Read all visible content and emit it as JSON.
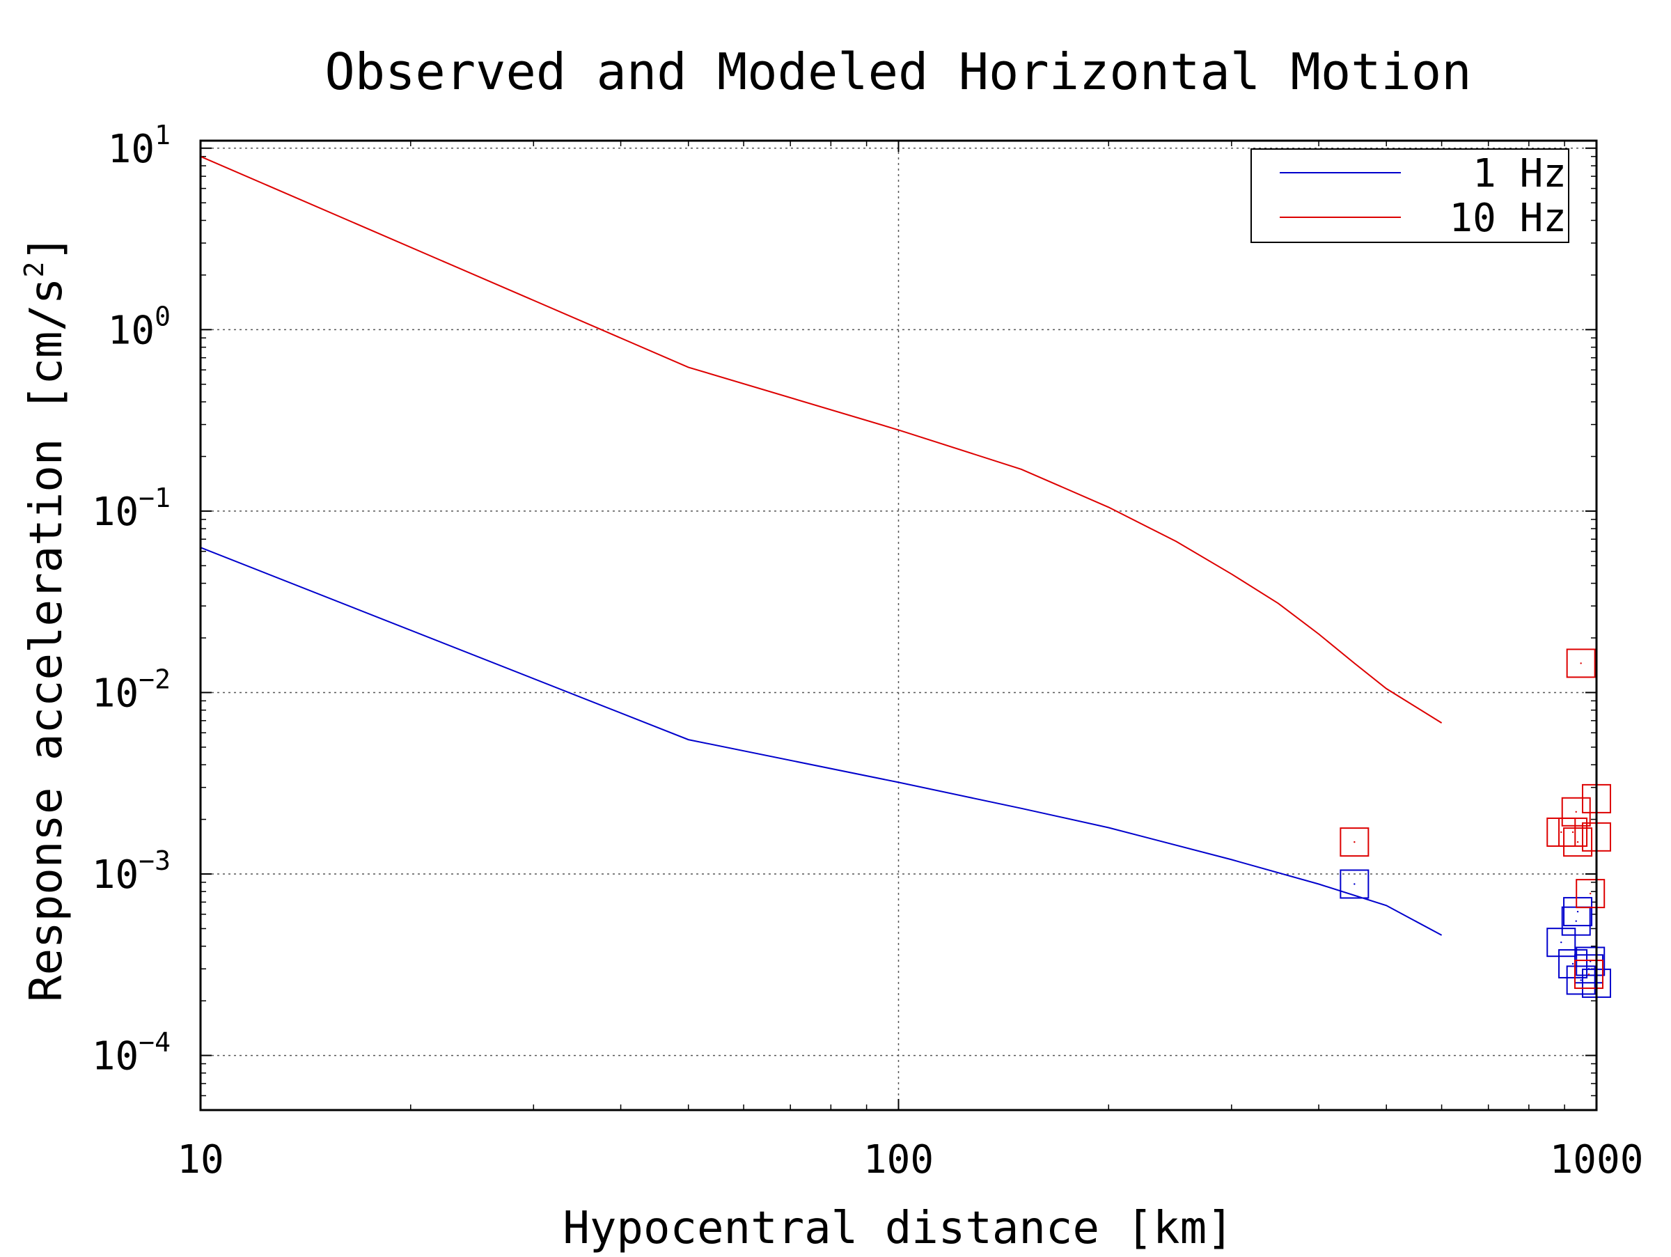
{
  "chart_data": {
    "type": "line",
    "title": "Observed and Modeled Horizontal Motion",
    "xlabel": "Hypocentral distance [km]",
    "ylabel_text": "Response acceleration [cm/s",
    "ylabel_exponent": "2",
    "ylabel_close": "]",
    "x_scale": "log",
    "y_scale": "log",
    "xlim": [
      10,
      1000
    ],
    "ylim": [
      5e-05,
      11
    ],
    "x_ticks": [
      {
        "value": 10,
        "label": "10"
      },
      {
        "value": 100,
        "label": "100"
      },
      {
        "value": 1000,
        "label": "1000"
      }
    ],
    "y_ticks": [
      {
        "value": 0.0001,
        "base": "10",
        "exp": "−4"
      },
      {
        "value": 0.001,
        "base": "10",
        "exp": "−3"
      },
      {
        "value": 0.01,
        "base": "10",
        "exp": "−2"
      },
      {
        "value": 0.1,
        "base": "10",
        "exp": "−1"
      },
      {
        "value": 1,
        "base": "10",
        "exp": "0"
      },
      {
        "value": 10,
        "base": "10",
        "exp": "1"
      }
    ],
    "grid": "dotted major",
    "legend_position": "top-right",
    "series": [
      {
        "name": "1 Hz",
        "color": "#0000cc",
        "type": "line",
        "points": [
          [
            10,
            0.063
          ],
          [
            50,
            0.0055
          ],
          [
            100,
            0.0032
          ],
          [
            150,
            0.0023
          ],
          [
            200,
            0.0018
          ],
          [
            300,
            0.0012
          ],
          [
            400,
            0.00088
          ],
          [
            500,
            0.00067
          ],
          [
            600,
            0.00046
          ]
        ]
      },
      {
        "name": "10 Hz",
        "color": "#dd0000",
        "type": "line",
        "points": [
          [
            10,
            9.0
          ],
          [
            50,
            0.62
          ],
          [
            100,
            0.28
          ],
          [
            150,
            0.17
          ],
          [
            200,
            0.105
          ],
          [
            250,
            0.068
          ],
          [
            300,
            0.045
          ],
          [
            350,
            0.031
          ],
          [
            400,
            0.021
          ],
          [
            450,
            0.0145
          ],
          [
            500,
            0.0105
          ],
          [
            600,
            0.0068
          ]
        ]
      }
    ],
    "observations": [
      {
        "series": "1 Hz",
        "color": "#0000cc",
        "marker": "square",
        "points": [
          [
            450,
            0.00088
          ],
          [
            890,
            0.00042
          ],
          [
            925,
            0.00032
          ],
          [
            935,
            0.00055
          ],
          [
            940,
            0.00062
          ],
          [
            950,
            0.00026
          ],
          [
            975,
            0.0003
          ],
          [
            980,
            0.00033
          ],
          [
            1000,
            0.00025
          ]
        ]
      },
      {
        "series": "10 Hz",
        "color": "#dd0000",
        "marker": "square",
        "points": [
          [
            450,
            0.0015
          ],
          [
            890,
            0.0017
          ],
          [
            925,
            0.0017
          ],
          [
            935,
            0.0022
          ],
          [
            940,
            0.0015
          ],
          [
            950,
            0.0145
          ],
          [
            975,
            0.00028
          ],
          [
            980,
            0.00078
          ],
          [
            1000,
            0.0016
          ],
          [
            1000,
            0.0026
          ]
        ]
      }
    ]
  }
}
